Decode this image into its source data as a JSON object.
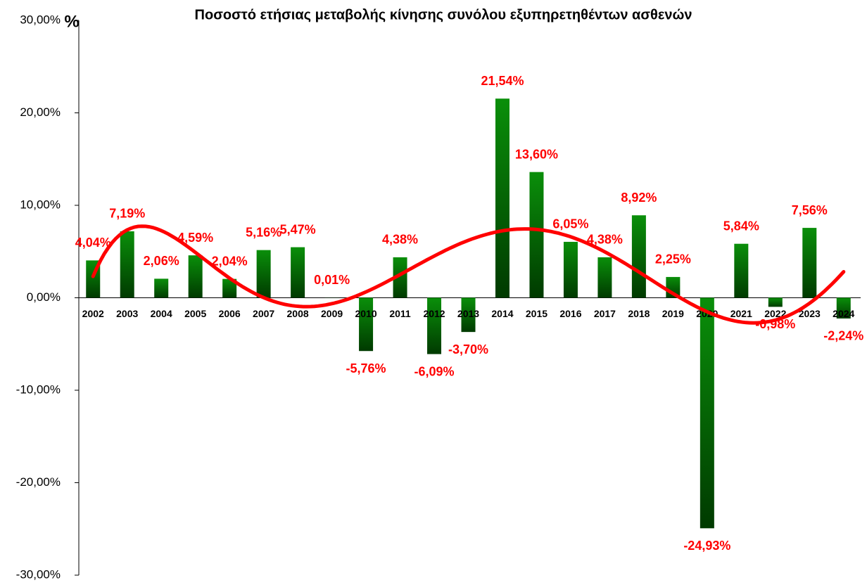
{
  "chart_data": {
    "type": "bar",
    "title": "Ποσοστό ετήσιας μεταβολής κίνησης συνόλου εξυπηρετηθέντων ασθενών",
    "y_label": "%",
    "categories": [
      "2002",
      "2003",
      "2004",
      "2005",
      "2006",
      "2007",
      "2008",
      "2009",
      "2010",
      "2011",
      "2012",
      "2013",
      "2014",
      "2015",
      "2016",
      "2017",
      "2018",
      "2019",
      "2020",
      "2021",
      "2022",
      "2023",
      "2024"
    ],
    "values": [
      4.04,
      7.19,
      2.06,
      4.59,
      2.04,
      5.16,
      5.47,
      0.01,
      -5.76,
      4.38,
      -6.09,
      -3.7,
      21.54,
      13.6,
      6.05,
      4.38,
      8.92,
      2.25,
      -24.93,
      5.84,
      -0.98,
      7.56,
      -2.24
    ],
    "value_labels": [
      "4,04%",
      "7,19%",
      "2,06%",
      "4,59%",
      "2,04%",
      "5,16%",
      "5,47%",
      "0,01%",
      "-5,76%",
      "4,38%",
      "-6,09%",
      "-3,70%",
      "21,54%",
      "13,60%",
      "6,05%",
      "4,38%",
      "8,92%",
      "2,25%",
      "-24,93%",
      "5,84%",
      "-0,98%",
      "7,56%",
      "-2,24%"
    ],
    "color": "#008a00",
    "label_color": "#ff0000",
    "trendline": {
      "type": "polynomial",
      "order": 6,
      "color": "#ff0000"
    },
    "ylim": [
      -30,
      30
    ],
    "yticks": [
      {
        "value": -30,
        "label": "-30,00%"
      },
      {
        "value": -20,
        "label": "-20,00%"
      },
      {
        "value": -10,
        "label": "-10,00%"
      },
      {
        "value": 0,
        "label": "0,00%"
      },
      {
        "value": 10,
        "label": "10,00%"
      },
      {
        "value": 20,
        "label": "20,00%"
      },
      {
        "value": 30,
        "label": "30,00%"
      }
    ],
    "grid": false
  }
}
